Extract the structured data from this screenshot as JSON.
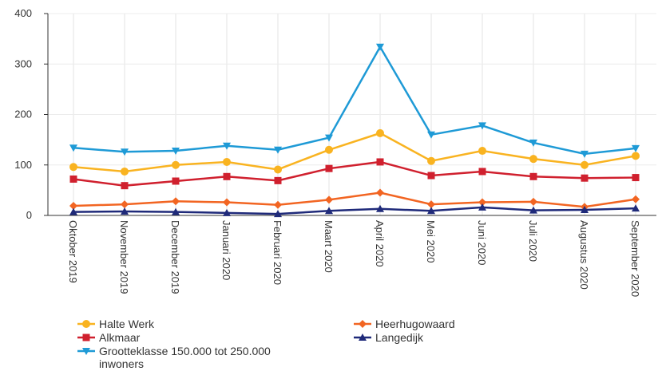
{
  "chart_data": {
    "type": "line",
    "categories": [
      "Oktober 2019",
      "November 2019",
      "December 2019",
      "Januari 2020",
      "Februari 2020",
      "Maart 2020",
      "April 2020",
      "Mei 2020",
      "Juni 2020",
      "Juli 2020",
      "Augustus 2020",
      "September 2020"
    ],
    "series": [
      {
        "name": "Halte Werk",
        "color": "#f9b320",
        "marker": "circle",
        "values": [
          96,
          87,
          100,
          106,
          91,
          130,
          163,
          108,
          128,
          112,
          100,
          118
        ]
      },
      {
        "name": "Heerhugowaard",
        "color": "#f26522",
        "marker": "diamond",
        "values": [
          19,
          22,
          28,
          26,
          21,
          31,
          45,
          22,
          26,
          27,
          17,
          32
        ]
      },
      {
        "name": "Alkmaar",
        "color": "#d0202e",
        "marker": "square",
        "values": [
          72,
          59,
          68,
          77,
          69,
          93,
          106,
          79,
          87,
          77,
          74,
          75
        ]
      },
      {
        "name": "Langedijk",
        "color": "#1f2a7a",
        "marker": "triangle-up",
        "values": [
          7,
          8,
          7,
          5,
          3,
          9,
          13,
          9,
          16,
          10,
          11,
          14
        ]
      },
      {
        "name": "Grootteklasse 150.000 tot 250.000 inwoners",
        "color": "#1e9ad6",
        "marker": "triangle-down",
        "values": [
          134,
          126,
          128,
          138,
          130,
          154,
          334,
          160,
          178,
          144,
          122,
          133
        ]
      }
    ],
    "ylim": [
      0,
      400
    ],
    "yticks": [
      0,
      100,
      200,
      300,
      400
    ],
    "grid": true
  }
}
